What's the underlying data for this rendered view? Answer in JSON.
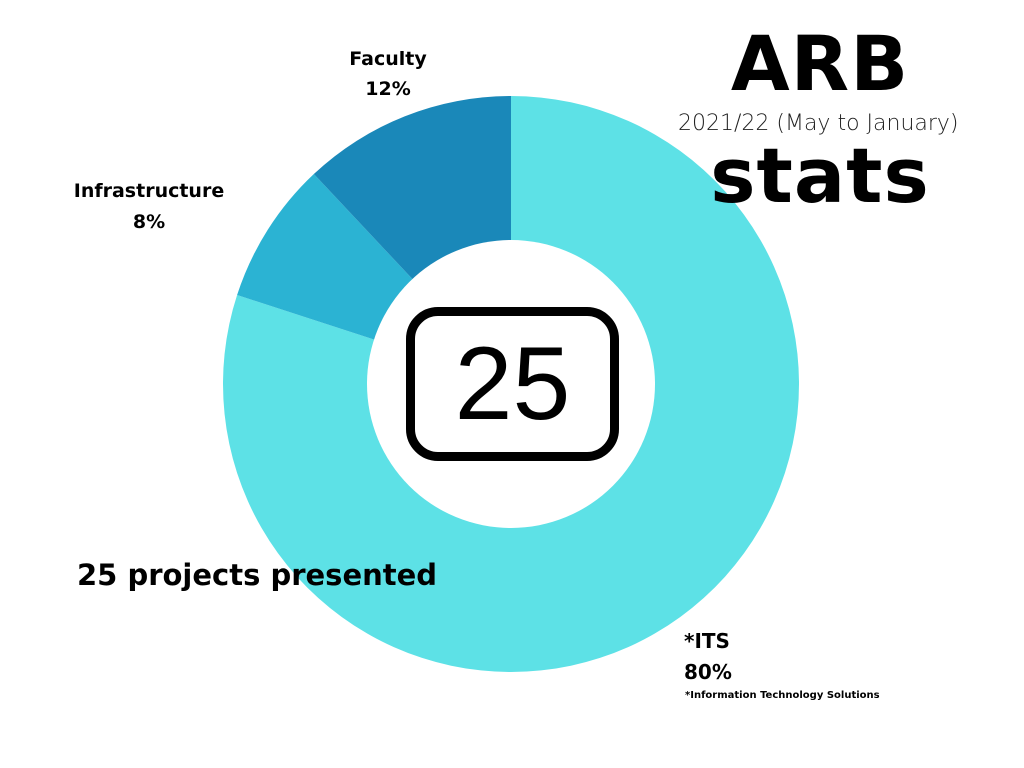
{
  "title": {
    "line1": "ARB",
    "subtitle": "2021/22 (May to January)",
    "line2": "stats"
  },
  "center_badge": {
    "value": "25",
    "icon": "rounded-box-number-icon"
  },
  "caption": "25 projects presented",
  "labels": {
    "faculty": {
      "name": "Faculty",
      "percent": "12%"
    },
    "infrastructure": {
      "name": "Infrastructure",
      "percent": "8%"
    },
    "its": {
      "name": "*ITS",
      "percent": "80%"
    }
  },
  "footnote": "*Information Technology Solutions",
  "colors": {
    "its": "#5de1e6",
    "infrastructure": "#2bb3d3",
    "faculty": "#1a88b9",
    "background": "#ffffff",
    "text": "#000000"
  },
  "chart_data": {
    "type": "pie",
    "subtype": "donut",
    "title": "ARB stats",
    "subtitle": "2021/22 (May to January)",
    "categories": [
      "*ITS",
      "Infrastructure",
      "Faculty"
    ],
    "values": [
      80,
      8,
      12
    ],
    "unit": "%",
    "colors": [
      "#5de1e6",
      "#2bb3d3",
      "#1a88b9"
    ],
    "center_text": "25",
    "annotation": "25 projects presented",
    "footnote": "*Information Technology Solutions",
    "start_angle": "12 o'clock",
    "direction": "clockwise starting with ITS",
    "legend": "none (direct labels)"
  }
}
